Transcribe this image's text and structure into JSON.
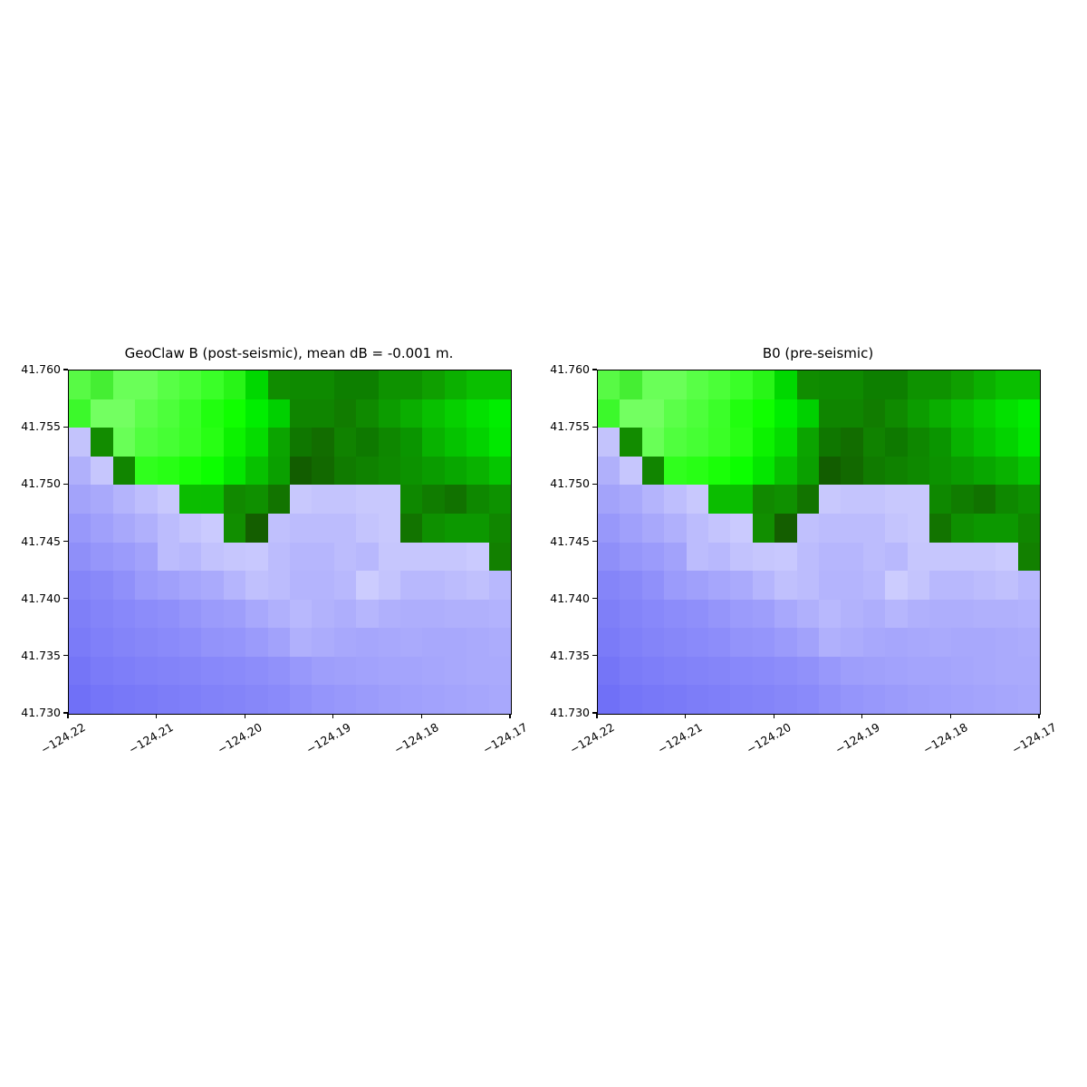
{
  "figure": {
    "background": "#ffffff"
  },
  "axes": {
    "x_tick_labels": [
      "−124.22",
      "−124.21",
      "−124.20",
      "−124.19",
      "−124.18",
      "−124.17"
    ],
    "y_tick_labels": [
      "41.760",
      "41.755",
      "41.750",
      "41.745",
      "41.740",
      "41.735",
      "41.730"
    ],
    "x_range": [
      -124.22,
      -124.17
    ],
    "y_range": [
      41.73,
      41.76
    ],
    "x_tick_rotation_deg": 30,
    "grid": "off",
    "tick_color": "#000000",
    "spine_color": "#000000"
  },
  "chart_data": {
    "type": "heatmap",
    "n_cols": 20,
    "n_rows": 12,
    "cell_size_deg": 0.0025,
    "x_range": [
      -124.22,
      -124.17
    ],
    "y_range": [
      41.73,
      41.76
    ],
    "panels": [
      {
        "title": "GeoClaw B (post-seismic), mean dB = -0.001 m."
      },
      {
        "title": "B0 (pre-seismic)"
      }
    ],
    "legend": "none",
    "land_accent": "#22ff11",
    "water_accent": "#8888fa",
    "grid_colors": [
      [
        "#58fa45",
        "#45ee33",
        "#6aff58",
        "#6aff58",
        "#58ff46",
        "#4bff38",
        "#3aff28",
        "#28f517",
        "#00d800",
        "#108c00",
        "#0e8a00",
        "#0e8a00",
        "#0d7f00",
        "#0d7f00",
        "#0e9200",
        "#0e9200",
        "#0f9f00",
        "#0bb000",
        "#0abf00",
        "#0abf00"
      ],
      [
        "#3cf92b",
        "#73ff61",
        "#73ff61",
        "#5bff49",
        "#4dff3b",
        "#3bff29",
        "#21ff0f",
        "#10ff00",
        "#00ee00",
        "#00d000",
        "#0f8500",
        "#0f8500",
        "#117c00",
        "#0f8a00",
        "#0c9c00",
        "#0aae00",
        "#08c000",
        "#06d000",
        "#03e000",
        "#00ee00"
      ],
      [
        "#c3c3fc",
        "#128c00",
        "#69ff57",
        "#50ff3e",
        "#46ff34",
        "#3aff26",
        "#28ff14",
        "#0cf200",
        "#05dc00",
        "#0ba400",
        "#0f7700",
        "#126d00",
        "#108200",
        "#0e7900",
        "#0e8700",
        "#0a9500",
        "#08b200",
        "#05c300",
        "#03d300",
        "#01e800"
      ],
      [
        "#b0b0fb",
        "#c6c6fd",
        "#118500",
        "#30ff1d",
        "#28ff15",
        "#1aff08",
        "#0cff00",
        "#04e600",
        "#07c100",
        "#0aa000",
        "#125d00",
        "#126900",
        "#107b00",
        "#0f8200",
        "#0e8900",
        "#0c9200",
        "#0a9c00",
        "#08a700",
        "#09b200",
        "#05c600"
      ],
      [
        "#a3a3fa",
        "#a9a9fb",
        "#b4b4fc",
        "#bebefd",
        "#c8c8fd",
        "#0bbd00",
        "#0abd00",
        "#118900",
        "#0f9000",
        "#127400",
        "#c8c8fd",
        "#c4c4fd",
        "#c4c4fd",
        "#c8c8fd",
        "#c8c8fd",
        "#0e8800",
        "#107c00",
        "#117200",
        "#0e8800",
        "#0d9200"
      ],
      [
        "#9898fa",
        "#a0a0fb",
        "#a8a8fb",
        "#b0b0fc",
        "#bcbcfd",
        "#c4c4fd",
        "#cacafe",
        "#118e00",
        "#145e00",
        "#c0c0fd",
        "#bcbcfd",
        "#bcbcfd",
        "#bcbcfd",
        "#c4c4fd",
        "#c8c8fd",
        "#127400",
        "#0e9000",
        "#0c9800",
        "#0c9800",
        "#108600"
      ],
      [
        "#8f8ff9",
        "#9696fa",
        "#9b9bfb",
        "#a2a2fb",
        "#bcbcfd",
        "#b8b8fd",
        "#c2c2fd",
        "#c6c6fd",
        "#c8c8fe",
        "#bcbcfd",
        "#b6b6fd",
        "#b6b6fd",
        "#bcbcfd",
        "#b8b8fd",
        "#c6c6fd",
        "#c6c6fd",
        "#c6c6fd",
        "#c6c6fd",
        "#cacafe",
        "#128000"
      ],
      [
        "#8585f9",
        "#8989f9",
        "#9090fa",
        "#9b9bfb",
        "#a0a0fb",
        "#a6a6fc",
        "#aaaafc",
        "#b5b5fd",
        "#c0c0fd",
        "#bcbcfd",
        "#b4b4fd",
        "#b4b4fd",
        "#b8b8fd",
        "#ccccfe",
        "#c4c4fd",
        "#b8b8fd",
        "#b8b8fd",
        "#bcbcfd",
        "#c0c0fd",
        "#b8b8fd"
      ],
      [
        "#7f7ff8",
        "#8484f9",
        "#8888fa",
        "#8c8cfa",
        "#8f8ffa",
        "#9595fa",
        "#9b9bfb",
        "#9e9efb",
        "#a8a8fc",
        "#b0b0fc",
        "#b8b8fd",
        "#b2b2fc",
        "#aeaefc",
        "#b6b6fd",
        "#b0b0fc",
        "#aeaefc",
        "#aeaefc",
        "#b0b0fc",
        "#b0b0fc",
        "#b2b2fd"
      ],
      [
        "#7b7bf8",
        "#8080f9",
        "#8484f9",
        "#8787f9",
        "#8a8afa",
        "#8d8dfa",
        "#9393fa",
        "#9595fb",
        "#9b9bfb",
        "#a2a2fb",
        "#b0b0fc",
        "#acacfc",
        "#a8a8fc",
        "#a6a6fc",
        "#a8a8fc",
        "#aaaafc",
        "#a8a8fc",
        "#a8a8fc",
        "#aaaafc",
        "#acacfc"
      ],
      [
        "#7575f7",
        "#7b7bf8",
        "#7e7ef9",
        "#8181f9",
        "#8383f9",
        "#8585f9",
        "#8888fa",
        "#8a8afa",
        "#8d8dfa",
        "#9191fa",
        "#9898fb",
        "#9e9efb",
        "#a0a0fb",
        "#a2a2fc",
        "#a4a4fc",
        "#a4a4fc",
        "#a6a6fc",
        "#a8a8fc",
        "#aaaafc",
        "#aaaafc"
      ],
      [
        "#7070f7",
        "#7575f8",
        "#7878f8",
        "#7a7af8",
        "#7d7df8",
        "#7f7ff9",
        "#8282f9",
        "#8484f9",
        "#8787f9",
        "#8a8afa",
        "#9090fa",
        "#9595fb",
        "#9898fb",
        "#9b9bfb",
        "#9e9efb",
        "#a0a0fc",
        "#a2a2fc",
        "#a4a4fc",
        "#a6a6fc",
        "#a8a8fc"
      ]
    ]
  }
}
